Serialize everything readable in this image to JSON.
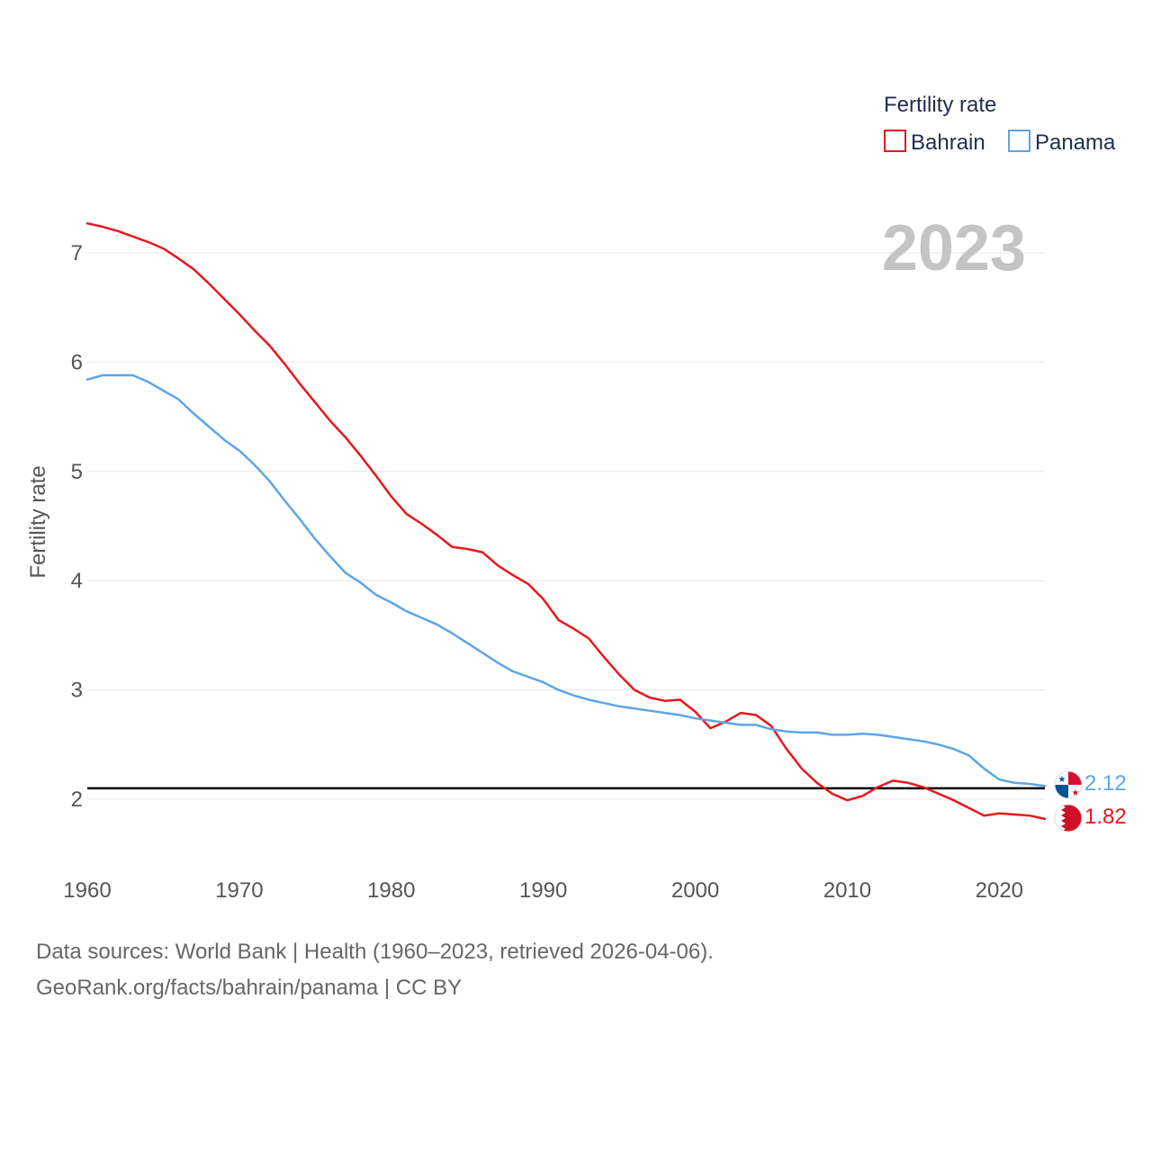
{
  "chart_data": {
    "type": "line",
    "title": "",
    "year_label": "2023",
    "xlabel": "",
    "ylabel": "Fertility rate",
    "xlim": [
      1960,
      2023
    ],
    "ylim": [
      1.5,
      7.5
    ],
    "x_ticks": [
      1960,
      1970,
      1980,
      1990,
      2000,
      2010,
      2020
    ],
    "y_ticks": [
      2,
      3,
      4,
      5,
      6,
      7
    ],
    "grid": true,
    "legend": {
      "title": "Fertility rate",
      "position": "top-right"
    },
    "reference_line": {
      "value": 2.1,
      "color": "#000000"
    },
    "series": [
      {
        "name": "Bahrain",
        "color": "#e8171c",
        "end_label": "1.82",
        "flag": "bahrain-flag-icon",
        "x": [
          1960,
          1961,
          1962,
          1963,
          1964,
          1965,
          1966,
          1967,
          1968,
          1969,
          1970,
          1971,
          1972,
          1973,
          1974,
          1975,
          1976,
          1977,
          1978,
          1979,
          1980,
          1981,
          1982,
          1983,
          1984,
          1985,
          1986,
          1987,
          1988,
          1989,
          1990,
          1991,
          1992,
          1993,
          1994,
          1995,
          1996,
          1997,
          1998,
          1999,
          2000,
          2001,
          2002,
          2003,
          2004,
          2005,
          2006,
          2007,
          2008,
          2009,
          2010,
          2011,
          2012,
          2013,
          2014,
          2015,
          2016,
          2017,
          2018,
          2019,
          2020,
          2021,
          2022,
          2023
        ],
        "values": [
          7.27,
          7.24,
          7.2,
          7.15,
          7.1,
          7.04,
          6.95,
          6.85,
          6.72,
          6.58,
          6.44,
          6.29,
          6.15,
          5.98,
          5.8,
          5.63,
          5.46,
          5.31,
          5.14,
          4.96,
          4.77,
          4.61,
          4.52,
          4.42,
          4.31,
          4.29,
          4.26,
          4.14,
          4.05,
          3.97,
          3.83,
          3.64,
          3.56,
          3.47,
          3.3,
          3.14,
          3.0,
          2.93,
          2.9,
          2.91,
          2.8,
          2.65,
          2.71,
          2.79,
          2.77,
          2.67,
          2.46,
          2.28,
          2.15,
          2.05,
          1.99,
          2.03,
          2.11,
          2.17,
          2.15,
          2.11,
          2.05,
          1.99,
          1.92,
          1.85,
          1.87,
          1.86,
          1.85,
          1.82
        ]
      },
      {
        "name": "Panama",
        "color": "#5ea5e8",
        "end_label": "2.12",
        "flag": "panama-flag-icon",
        "x": [
          1960,
          1961,
          1962,
          1963,
          1964,
          1965,
          1966,
          1967,
          1968,
          1969,
          1970,
          1971,
          1972,
          1973,
          1974,
          1975,
          1976,
          1977,
          1978,
          1979,
          1980,
          1981,
          1982,
          1983,
          1984,
          1985,
          1986,
          1987,
          1988,
          1989,
          1990,
          1991,
          1992,
          1993,
          1994,
          1995,
          1996,
          1997,
          1998,
          1999,
          2000,
          2001,
          2002,
          2003,
          2004,
          2005,
          2006,
          2007,
          2008,
          2009,
          2010,
          2011,
          2012,
          2013,
          2014,
          2015,
          2016,
          2017,
          2018,
          2019,
          2020,
          2021,
          2022,
          2023
        ],
        "values": [
          5.84,
          5.88,
          5.88,
          5.88,
          5.82,
          5.74,
          5.66,
          5.53,
          5.41,
          5.29,
          5.19,
          5.06,
          4.91,
          4.73,
          4.56,
          4.38,
          4.22,
          4.07,
          3.98,
          3.87,
          3.8,
          3.72,
          3.66,
          3.6,
          3.52,
          3.43,
          3.34,
          3.25,
          3.17,
          3.12,
          3.07,
          3.0,
          2.95,
          2.91,
          2.88,
          2.85,
          2.83,
          2.81,
          2.79,
          2.77,
          2.74,
          2.72,
          2.7,
          2.68,
          2.68,
          2.64,
          2.62,
          2.61,
          2.61,
          2.59,
          2.59,
          2.6,
          2.59,
          2.57,
          2.55,
          2.53,
          2.5,
          2.46,
          2.4,
          2.28,
          2.18,
          2.15,
          2.14,
          2.12
        ]
      }
    ]
  },
  "footer": {
    "line1": "Data sources: World Bank | Health (1960–2023, retrieved 2026-04-06).",
    "line2": "GeoRank.org/facts/bahrain/panama | CC BY"
  }
}
